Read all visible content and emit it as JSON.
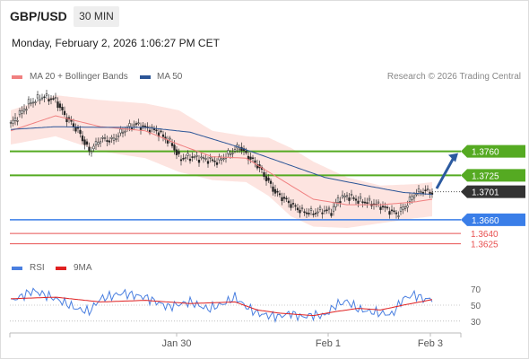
{
  "header": {
    "symbol": "GBP/USD",
    "timeframe": "30 MIN",
    "datetime": "Monday, February 2, 2026 1:06:27 PM CET",
    "attribution": "Research © 2026 Trading Central"
  },
  "colors": {
    "support": "#3a7ee8",
    "resistance": "#55aa22",
    "target": "#e85050",
    "current": "#333333",
    "ma20": "#f08080",
    "ma50": "#2b5597",
    "bollinger_fill": "#fde4e0",
    "arrow": "#2b5aa0",
    "rsi": "#4a7fe0",
    "rsi_ma": "#e02020"
  },
  "chart_data": [
    {
      "type": "candlestick",
      "legend": [
        {
          "name": "MA 20 + Bollinger Bands",
          "color": "#f08080"
        },
        {
          "name": "MA 50",
          "color": "#2b5597"
        }
      ],
      "x_ticks": [
        "Jan 30",
        "Feb 1",
        "Feb 3"
      ],
      "ylim": [
        1.361,
        1.385
      ],
      "levels": [
        {
          "value": 1.376,
          "label": "1.3760",
          "kind": "resistance"
        },
        {
          "value": 1.3725,
          "label": "1.3725",
          "kind": "resistance"
        },
        {
          "value": 1.3701,
          "label": "1.3701",
          "kind": "current"
        },
        {
          "value": 1.366,
          "label": "1.3660",
          "kind": "support"
        },
        {
          "value": 1.364,
          "label": "1.3640",
          "kind": "target"
        },
        {
          "value": 1.3625,
          "label": "1.3625",
          "kind": "target"
        }
      ],
      "path": [
        [
          0,
          1.38
        ],
        [
          8,
          1.383
        ],
        [
          14,
          1.384
        ],
        [
          20,
          1.3835
        ],
        [
          24,
          1.3812
        ],
        [
          30,
          1.379
        ],
        [
          35,
          1.376
        ],
        [
          40,
          1.3778
        ],
        [
          45,
          1.3776
        ],
        [
          50,
          1.379
        ],
        [
          55,
          1.38
        ],
        [
          60,
          1.3795
        ],
        [
          65,
          1.379
        ],
        [
          72,
          1.377
        ],
        [
          75,
          1.375
        ],
        [
          80,
          1.3752
        ],
        [
          88,
          1.3748
        ],
        [
          92,
          1.3745
        ],
        [
          98,
          1.3758
        ],
        [
          102,
          1.3767
        ],
        [
          105,
          1.3755
        ],
        [
          110,
          1.374
        ],
        [
          114,
          1.372
        ],
        [
          118,
          1.37
        ],
        [
          122,
          1.369
        ],
        [
          126,
          1.368
        ],
        [
          130,
          1.3672
        ],
        [
          134,
          1.367
        ],
        [
          140,
          1.3674
        ],
        [
          143,
          1.3672
        ],
        [
          146,
          1.369
        ],
        [
          150,
          1.3695
        ],
        [
          155,
          1.3688
        ],
        [
          160,
          1.3685
        ],
        [
          165,
          1.368
        ],
        [
          170,
          1.3672
        ],
        [
          172,
          1.3668
        ],
        [
          176,
          1.368
        ],
        [
          180,
          1.3698
        ],
        [
          184,
          1.3703
        ],
        [
          188,
          1.37
        ]
      ],
      "ma20": [
        [
          0,
          1.379
        ],
        [
          20,
          1.3812
        ],
        [
          40,
          1.3796
        ],
        [
          60,
          1.379
        ],
        [
          75,
          1.377
        ],
        [
          90,
          1.3752
        ],
        [
          105,
          1.375
        ],
        [
          120,
          1.372
        ],
        [
          135,
          1.369
        ],
        [
          150,
          1.3682
        ],
        [
          165,
          1.3682
        ],
        [
          180,
          1.3686
        ],
        [
          188,
          1.369
        ]
      ],
      "ma50": [
        [
          0,
          1.3792
        ],
        [
          20,
          1.3796
        ],
        [
          40,
          1.3795
        ],
        [
          60,
          1.3795
        ],
        [
          80,
          1.3788
        ],
        [
          100,
          1.3768
        ],
        [
          120,
          1.3745
        ],
        [
          140,
          1.3722
        ],
        [
          160,
          1.3709
        ],
        [
          175,
          1.37
        ],
        [
          188,
          1.3697
        ]
      ],
      "band_upper": [
        [
          0,
          1.382
        ],
        [
          20,
          1.3842
        ],
        [
          40,
          1.3835
        ],
        [
          60,
          1.383
        ],
        [
          75,
          1.382
        ],
        [
          90,
          1.379
        ],
        [
          105,
          1.3782
        ],
        [
          115,
          1.378
        ],
        [
          125,
          1.3765
        ],
        [
          135,
          1.3745
        ],
        [
          150,
          1.3722
        ],
        [
          165,
          1.371
        ],
        [
          180,
          1.3712
        ],
        [
          188,
          1.3715
        ]
      ],
      "band_lower": [
        [
          0,
          1.377
        ],
        [
          20,
          1.3782
        ],
        [
          40,
          1.376
        ],
        [
          60,
          1.375
        ],
        [
          75,
          1.373
        ],
        [
          90,
          1.3718
        ],
        [
          105,
          1.3715
        ],
        [
          115,
          1.3695
        ],
        [
          125,
          1.3665
        ],
        [
          135,
          1.365
        ],
        [
          150,
          1.3648
        ],
        [
          165,
          1.3655
        ],
        [
          180,
          1.3662
        ],
        [
          188,
          1.3665
        ]
      ],
      "arrow_target": 1.376
    },
    {
      "type": "line",
      "legend": [
        {
          "name": "RSI",
          "color": "#4a7fe0"
        },
        {
          "name": "9MA",
          "color": "#e02020"
        }
      ],
      "yticks": [
        70,
        50,
        30
      ],
      "ylim": [
        22,
        78
      ],
      "series": [
        {
          "name": "RSI",
          "points": [
            [
              0,
              55
            ],
            [
              10,
              68
            ],
            [
              20,
              58
            ],
            [
              30,
              45
            ],
            [
              35,
              42
            ],
            [
              40,
              58
            ],
            [
              50,
              65
            ],
            [
              60,
              60
            ],
            [
              70,
              48
            ],
            [
              80,
              54
            ],
            [
              88,
              45
            ],
            [
              95,
              52
            ],
            [
              100,
              60
            ],
            [
              105,
              48
            ],
            [
              110,
              40
            ],
            [
              115,
              37
            ],
            [
              120,
              36
            ],
            [
              125,
              40
            ],
            [
              130,
              35
            ],
            [
              135,
              38
            ],
            [
              140,
              37
            ],
            [
              145,
              50
            ],
            [
              150,
              55
            ],
            [
              155,
              45
            ],
            [
              160,
              42
            ],
            [
              165,
              40
            ],
            [
              170,
              38
            ],
            [
              175,
              58
            ],
            [
              180,
              63
            ],
            [
              185,
              57
            ],
            [
              188,
              58
            ]
          ]
        },
        {
          "name": "9MA",
          "points": [
            [
              0,
              58
            ],
            [
              20,
              60
            ],
            [
              40,
              54
            ],
            [
              60,
              56
            ],
            [
              80,
              52
            ],
            [
              100,
              54
            ],
            [
              110,
              44
            ],
            [
              120,
              40
            ],
            [
              135,
              37
            ],
            [
              145,
              42
            ],
            [
              155,
              46
            ],
            [
              165,
              44
            ],
            [
              175,
              50
            ],
            [
              188,
              57
            ]
          ]
        }
      ]
    }
  ]
}
